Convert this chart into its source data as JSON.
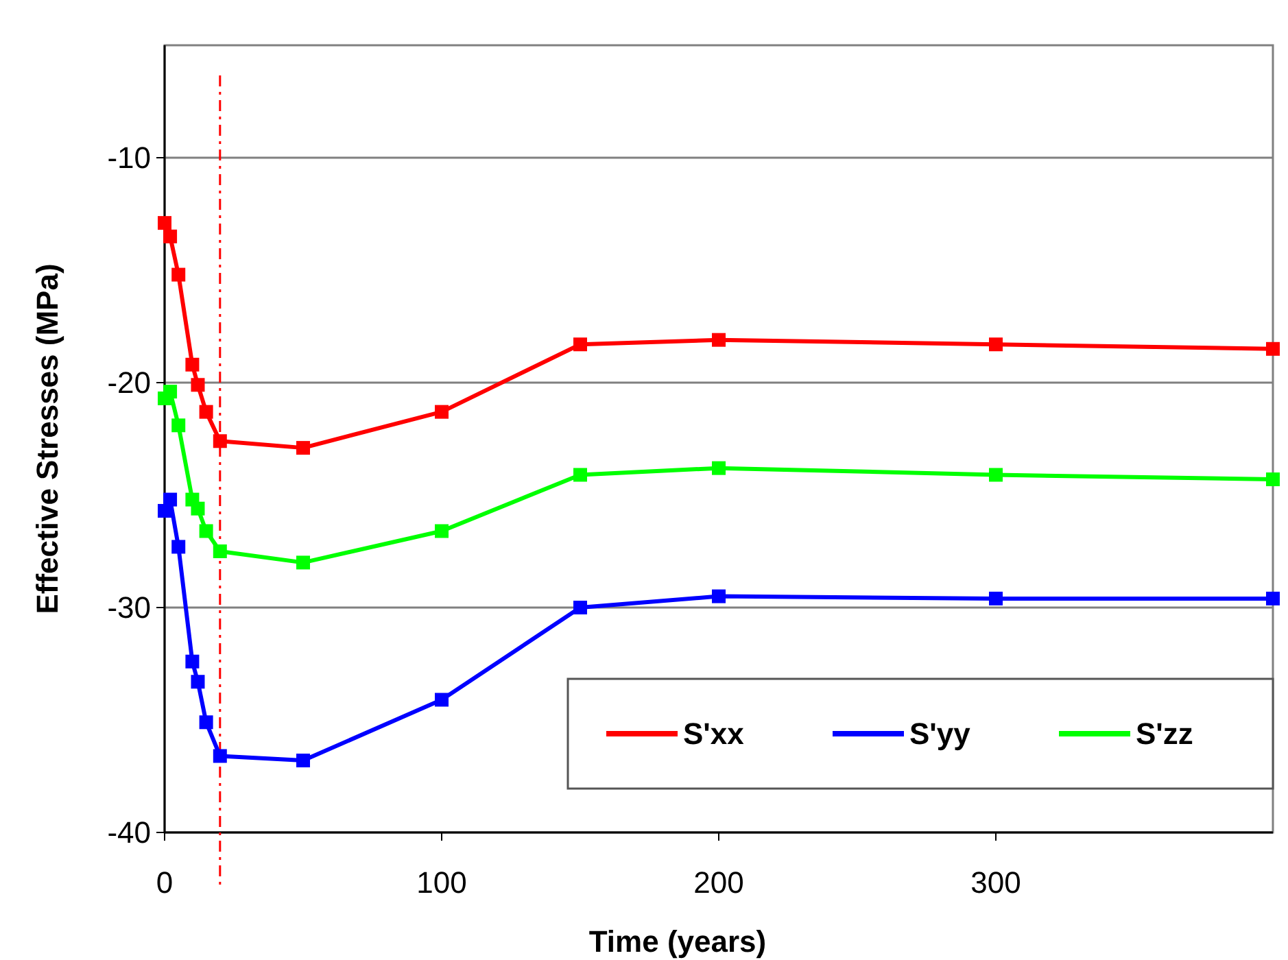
{
  "chart_data": {
    "type": "line",
    "xlabel": "Time (years)",
    "ylabel": "Effective Stresses (MPa)",
    "x": [
      0,
      2,
      5,
      10,
      12,
      15,
      20,
      50,
      100,
      150,
      200,
      300,
      400
    ],
    "series": [
      {
        "name": "S'xx",
        "color": "#ff0000",
        "values": [
          -12.9,
          -13.5,
          -15.2,
          -19.2,
          -20.1,
          -21.3,
          -22.6,
          -22.9,
          -21.3,
          -18.3,
          -18.1,
          -18.3,
          -18.5
        ]
      },
      {
        "name": "S'yy",
        "color": "#0000ff",
        "values": [
          -25.7,
          -25.2,
          -27.3,
          -32.4,
          -33.3,
          -35.1,
          -36.6,
          -36.8,
          -34.1,
          -30.0,
          -29.5,
          -29.6,
          -29.6
        ]
      },
      {
        "name": "S'zz",
        "color": "#00ff00",
        "values": [
          -20.7,
          -20.4,
          -21.9,
          -25.2,
          -25.6,
          -26.6,
          -27.5,
          -28.0,
          -26.6,
          -24.1,
          -23.8,
          -24.1,
          -24.3
        ]
      }
    ],
    "xlim": [
      0,
      400
    ],
    "xticks": [
      0,
      100,
      200,
      300
    ],
    "ylim": [
      -40,
      -5
    ],
    "yticks": [
      -40,
      -30,
      -20,
      -10
    ],
    "ref_lines": [
      {
        "axis": "x",
        "value": 20,
        "color": "#ff0000",
        "line_style": "dashed"
      }
    ],
    "grid": "y",
    "legend": "bottom right",
    "marker": "square",
    "line_style": "solid"
  }
}
